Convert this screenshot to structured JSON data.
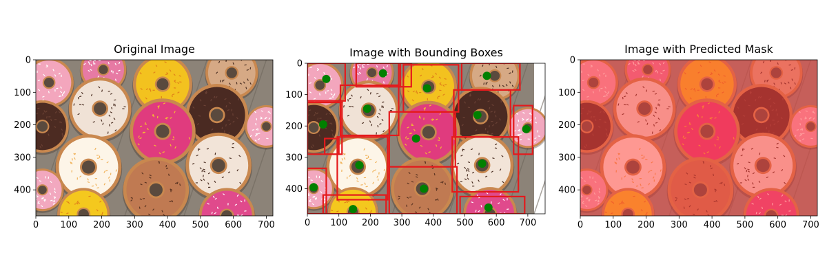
{
  "chart_data": [
    {
      "type": "image",
      "title": "Original Image",
      "xlim": [
        0,
        720
      ],
      "ylim": [
        480,
        0
      ],
      "xticks": [
        0,
        100,
        200,
        300,
        400,
        500,
        600,
        700
      ],
      "yticks": [
        0,
        100,
        200,
        300,
        400
      ],
      "colors": {
        "board": "#8c8378",
        "plank_line": "#6f675d"
      },
      "donuts": [
        {
          "x": 40,
          "y": 70,
          "r": 75,
          "color": "#f3a6bd",
          "sprinkle": "#ffffff"
        },
        {
          "x": 205,
          "y": 30,
          "r": 70,
          "color": "#e77aa4",
          "sprinkle": "#ffffff"
        },
        {
          "x": 385,
          "y": 75,
          "r": 90,
          "color": "#f3c21f",
          "sprinkle": "#e0801a"
        },
        {
          "x": 595,
          "y": 40,
          "r": 80,
          "color": "#d6a985",
          "sprinkle": "#4a2e22"
        },
        {
          "x": 195,
          "y": 150,
          "r": 95,
          "color": "#f0e2d6",
          "sprinkle": "#4a2e22"
        },
        {
          "x": 20,
          "y": 205,
          "r": 80,
          "color": "#4c2b22",
          "sprinkle": "#6a4133"
        },
        {
          "x": 550,
          "y": 170,
          "r": 95,
          "color": "#4a2a22",
          "sprinkle": "#6b4236"
        },
        {
          "x": 385,
          "y": 220,
          "r": 100,
          "color": "#e03b7e",
          "sprinkle": "#f2c230"
        },
        {
          "x": 700,
          "y": 205,
          "r": 65,
          "color": "#f2a8bf",
          "sprinkle": "#ffffff"
        },
        {
          "x": 160,
          "y": 330,
          "r": 100,
          "color": "#fdf5e8",
          "sprinkle": "#f0b25a"
        },
        {
          "x": 555,
          "y": 325,
          "r": 100,
          "color": "#f2e4d8",
          "sprinkle": "#4a2e22"
        },
        {
          "x": 365,
          "y": 400,
          "r": 100,
          "color": "#c07a52",
          "sprinkle": "#5a3422"
        },
        {
          "x": 20,
          "y": 400,
          "r": 65,
          "color": "#f2a8bf",
          "sprinkle": "#ffffff"
        },
        {
          "x": 145,
          "y": 475,
          "r": 80,
          "color": "#f4c81e",
          "sprinkle": "#e0801a"
        },
        {
          "x": 580,
          "y": 480,
          "r": 85,
          "color": "#e04a8c",
          "sprinkle": "#ffffff"
        }
      ]
    },
    {
      "type": "image-with-annotations",
      "title": "Image with Bounding Boxes",
      "xlim": [
        0,
        755
      ],
      "ylim": [
        480,
        0
      ],
      "xticks": [
        0,
        100,
        200,
        300,
        400,
        500,
        600,
        700
      ],
      "yticks": [
        0,
        100,
        200,
        300,
        400
      ],
      "box_color": "#e41a1c",
      "point_color": "#008000",
      "boxes": [
        [
          0,
          0,
          120,
          120
        ],
        [
          155,
          0,
          295,
          75
        ],
        [
          290,
          0,
          330,
          75
        ],
        [
          305,
          5,
          480,
          155
        ],
        [
          490,
          0,
          675,
          85
        ],
        [
          105,
          70,
          290,
          230
        ],
        [
          0,
          125,
          110,
          290
        ],
        [
          260,
          155,
          470,
          330
        ],
        [
          465,
          85,
          645,
          235
        ],
        [
          655,
          135,
          715,
          290
        ],
        [
          55,
          240,
          100,
          290
        ],
        [
          95,
          235,
          255,
          435
        ],
        [
          0,
          335,
          60,
          480
        ],
        [
          260,
          330,
          475,
          480
        ],
        [
          460,
          235,
          670,
          410
        ],
        [
          50,
          420,
          250,
          480
        ],
        [
          485,
          425,
          690,
          480
        ]
      ],
      "points": [
        [
          60,
          50
        ],
        [
          240,
          32
        ],
        [
          380,
          80
        ],
        [
          570,
          40
        ],
        [
          190,
          145
        ],
        [
          50,
          195
        ],
        [
          540,
          165
        ],
        [
          695,
          210
        ],
        [
          345,
          240
        ],
        [
          165,
          325
        ],
        [
          555,
          320
        ],
        [
          370,
          400
        ],
        [
          20,
          395
        ],
        [
          145,
          465
        ],
        [
          575,
          460
        ]
      ]
    },
    {
      "type": "image",
      "title": "Image with Predicted Mask",
      "xlim": [
        0,
        720
      ],
      "ylim": [
        480,
        0
      ],
      "xticks": [
        0,
        100,
        200,
        300,
        400,
        500,
        600,
        700
      ],
      "yticks": [
        0,
        100,
        200,
        300,
        400
      ],
      "mask_color": "#ff3b3b",
      "mask_opacity": 0.5
    }
  ]
}
